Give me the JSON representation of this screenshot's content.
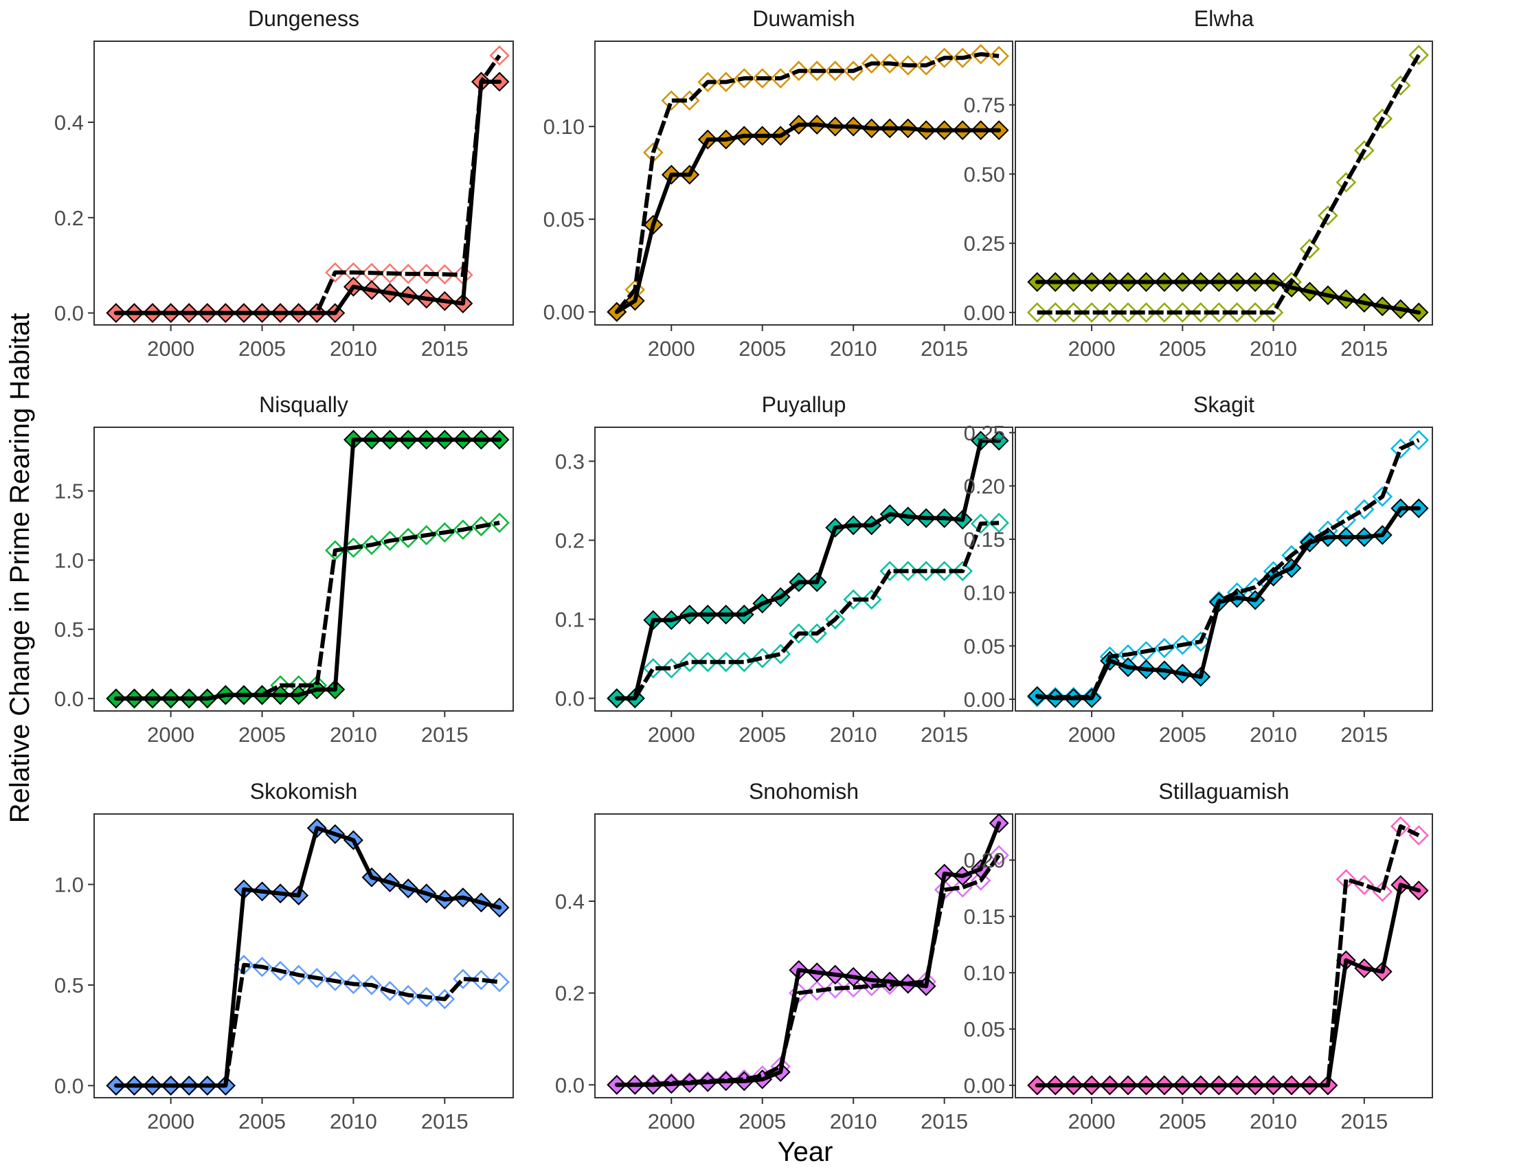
{
  "figure": {
    "xlabel": "Year",
    "ylabel": "Relative Change in Prime Rearing Habitat",
    "colors": {
      "Dungeness": "#F8766D",
      "Duwamish": "#D39200",
      "Elwha": "#93AA00",
      "Nisqually": "#00BA38",
      "Puyallup": "#00C19F",
      "Skagit": "#00B9E3",
      "Skokomish": "#619CFF",
      "Snohomish": "#DB72FB",
      "Stillaguamish": "#FF61C3"
    }
  },
  "chart_data": [
    {
      "type": "line",
      "title": "Dungeness",
      "x": [
        1997,
        1998,
        1999,
        2000,
        2001,
        2002,
        2003,
        2004,
        2005,
        2006,
        2007,
        2008,
        2009,
        2010,
        2011,
        2012,
        2013,
        2014,
        2015,
        2016,
        2017,
        2018
      ],
      "ylim": [
        -0.025,
        0.57
      ],
      "yticks": [
        0.0,
        0.2,
        0.4
      ],
      "ytick_labels": [
        "0.0",
        "0.2",
        "0.4"
      ],
      "xticks": [
        2000,
        2005,
        2010,
        2015
      ],
      "series": [
        {
          "name": "filled",
          "values": [
            0,
            0,
            0,
            0,
            0,
            0,
            0,
            0,
            0,
            0,
            0,
            0,
            0,
            0.055,
            0.048,
            0.042,
            0.036,
            0.03,
            0.025,
            0.02,
            0.485,
            0.485
          ]
        },
        {
          "name": "open",
          "values": [
            0,
            0,
            0,
            0,
            0,
            0,
            0,
            0,
            0,
            0,
            0,
            0,
            0.085,
            0.085,
            0.084,
            0.083,
            0.082,
            0.082,
            0.081,
            0.08,
            0.485,
            0.54
          ]
        }
      ]
    },
    {
      "type": "line",
      "title": "Duwamish",
      "x": [
        1997,
        1998,
        1999,
        2000,
        2001,
        2002,
        2003,
        2004,
        2005,
        2006,
        2007,
        2008,
        2009,
        2010,
        2011,
        2012,
        2013,
        2014,
        2015,
        2016,
        2017,
        2018
      ],
      "ylim": [
        -0.007,
        0.146
      ],
      "yticks": [
        0.0,
        0.05,
        0.1
      ],
      "ytick_labels": [
        "0.00",
        "0.05",
        "0.10"
      ],
      "xticks": [
        2000,
        2005,
        2010,
        2015
      ],
      "series": [
        {
          "name": "filled",
          "values": [
            0,
            0.006,
            0.047,
            0.074,
            0.074,
            0.093,
            0.093,
            0.095,
            0.095,
            0.095,
            0.101,
            0.101,
            0.1,
            0.1,
            0.099,
            0.099,
            0.099,
            0.098,
            0.098,
            0.098,
            0.098,
            0.098
          ]
        },
        {
          "name": "open",
          "values": [
            0,
            0.012,
            0.086,
            0.114,
            0.114,
            0.124,
            0.124,
            0.126,
            0.126,
            0.126,
            0.13,
            0.13,
            0.13,
            0.13,
            0.134,
            0.134,
            0.133,
            0.133,
            0.137,
            0.137,
            0.139,
            0.138
          ]
        }
      ]
    },
    {
      "type": "line",
      "title": "Elwha",
      "x": [
        1997,
        1998,
        1999,
        2000,
        2001,
        2002,
        2003,
        2004,
        2005,
        2006,
        2007,
        2008,
        2009,
        2010,
        2011,
        2012,
        2013,
        2014,
        2015,
        2016,
        2017,
        2018
      ],
      "ylim": [
        -0.045,
        0.98
      ],
      "yticks": [
        0.0,
        0.25,
        0.5,
        0.75
      ],
      "ytick_labels": [
        "0.00",
        "0.25",
        "0.50",
        "0.75"
      ],
      "xticks": [
        2000,
        2005,
        2010,
        2015
      ],
      "series": [
        {
          "name": "filled",
          "values": [
            0.11,
            0.11,
            0.11,
            0.11,
            0.11,
            0.11,
            0.11,
            0.11,
            0.11,
            0.11,
            0.11,
            0.11,
            0.11,
            0.11,
            0.09,
            0.075,
            0.062,
            0.048,
            0.035,
            0.022,
            0.012,
            0
          ]
        },
        {
          "name": "open",
          "values": [
            0,
            0,
            0,
            0,
            0,
            0,
            0,
            0,
            0,
            0,
            0,
            0,
            0,
            0,
            0.11,
            0.23,
            0.35,
            0.47,
            0.585,
            0.7,
            0.82,
            0.93
          ]
        }
      ]
    },
    {
      "type": "line",
      "title": "Nisqually",
      "x": [
        1997,
        1998,
        1999,
        2000,
        2001,
        2002,
        2003,
        2004,
        2005,
        2006,
        2007,
        2008,
        2009,
        2010,
        2011,
        2012,
        2013,
        2014,
        2015,
        2016,
        2017,
        2018
      ],
      "ylim": [
        -0.09,
        1.96
      ],
      "yticks": [
        0.0,
        0.5,
        1.0,
        1.5
      ],
      "ytick_labels": [
        "0.0",
        "0.5",
        "1.0",
        "1.5"
      ],
      "xticks": [
        2000,
        2005,
        2010,
        2015
      ],
      "series": [
        {
          "name": "filled",
          "values": [
            0,
            0,
            0,
            0,
            0,
            0,
            0.025,
            0.025,
            0.025,
            0.025,
            0.025,
            0.065,
            0.065,
            1.87,
            1.87,
            1.87,
            1.87,
            1.87,
            1.87,
            1.87,
            1.87,
            1.87
          ]
        },
        {
          "name": "open",
          "values": [
            0,
            0,
            0,
            0,
            0,
            0,
            0.025,
            0.025,
            0.025,
            0.095,
            0.095,
            0.095,
            1.07,
            1.09,
            1.11,
            1.14,
            1.16,
            1.18,
            1.2,
            1.22,
            1.245,
            1.27
          ]
        }
      ]
    },
    {
      "type": "line",
      "title": "Puyallup",
      "x": [
        1997,
        1998,
        1999,
        2000,
        2001,
        2002,
        2003,
        2004,
        2005,
        2006,
        2007,
        2008,
        2009,
        2010,
        2011,
        2012,
        2013,
        2014,
        2015,
        2016,
        2017,
        2018
      ],
      "ylim": [
        -0.016,
        0.343
      ],
      "yticks": [
        0.0,
        0.1,
        0.2,
        0.3
      ],
      "ytick_labels": [
        "0.0",
        "0.1",
        "0.2",
        "0.3"
      ],
      "xticks": [
        2000,
        2005,
        2010,
        2015
      ],
      "series": [
        {
          "name": "filled",
          "values": [
            0,
            0,
            0.099,
            0.099,
            0.106,
            0.106,
            0.106,
            0.106,
            0.12,
            0.128,
            0.147,
            0.147,
            0.216,
            0.219,
            0.219,
            0.233,
            0.23,
            0.228,
            0.228,
            0.226,
            0.326,
            0.326
          ]
        },
        {
          "name": "open",
          "values": [
            0,
            0,
            0.038,
            0.038,
            0.046,
            0.046,
            0.046,
            0.046,
            0.051,
            0.056,
            0.082,
            0.082,
            0.1,
            0.125,
            0.125,
            0.161,
            0.161,
            0.161,
            0.161,
            0.161,
            0.221,
            0.222
          ]
        }
      ]
    },
    {
      "type": "line",
      "title": "Skagit",
      "x": [
        1997,
        1998,
        1999,
        2000,
        2001,
        2002,
        2003,
        2004,
        2005,
        2006,
        2007,
        2008,
        2009,
        2010,
        2011,
        2012,
        2013,
        2014,
        2015,
        2016,
        2017,
        2018
      ],
      "ylim": [
        -0.011,
        0.255
      ],
      "yticks": [
        0.0,
        0.05,
        0.1,
        0.15,
        0.2,
        0.25
      ],
      "ytick_labels": [
        "0.00",
        "0.05",
        "0.10",
        "0.15",
        "0.20",
        "0.25"
      ],
      "xticks": [
        2000,
        2005,
        2010,
        2015
      ],
      "series": [
        {
          "name": "filled",
          "values": [
            0.003,
            0.001,
            0.001,
            0.001,
            0.036,
            0.03,
            0.028,
            0.027,
            0.024,
            0.021,
            0.091,
            0.095,
            0.093,
            0.115,
            0.123,
            0.147,
            0.152,
            0.152,
            0.152,
            0.154,
            0.179,
            0.179
          ]
        },
        {
          "name": "open",
          "values": [
            0.002,
            0.002,
            0.002,
            0.002,
            0.04,
            0.042,
            0.045,
            0.048,
            0.051,
            0.054,
            0.092,
            0.1,
            0.105,
            0.12,
            0.135,
            0.148,
            0.158,
            0.168,
            0.178,
            0.19,
            0.235,
            0.243
          ]
        }
      ]
    },
    {
      "type": "line",
      "title": "Skokomish",
      "x": [
        1997,
        1998,
        1999,
        2000,
        2001,
        2002,
        2003,
        2004,
        2005,
        2006,
        2007,
        2008,
        2009,
        2010,
        2011,
        2012,
        2013,
        2014,
        2015,
        2016,
        2017,
        2018
      ],
      "ylim": [
        -0.06,
        1.35
      ],
      "yticks": [
        0.0,
        0.5,
        1.0
      ],
      "ytick_labels": [
        "0.0",
        "0.5",
        "1.0"
      ],
      "xticks": [
        2000,
        2005,
        2010,
        2015
      ],
      "series": [
        {
          "name": "filled",
          "values": [
            0,
            0,
            0,
            0,
            0,
            0,
            0,
            0.975,
            0.965,
            0.955,
            0.945,
            1.28,
            1.25,
            1.22,
            1.035,
            1.01,
            0.98,
            0.955,
            0.925,
            0.935,
            0.91,
            0.885
          ]
        },
        {
          "name": "open",
          "values": [
            0,
            0,
            0,
            0,
            0,
            0,
            0,
            0.6,
            0.59,
            0.57,
            0.55,
            0.535,
            0.52,
            0.505,
            0.5,
            0.47,
            0.45,
            0.44,
            0.43,
            0.53,
            0.525,
            0.515
          ]
        }
      ]
    },
    {
      "type": "line",
      "title": "Snohomish",
      "x": [
        1997,
        1998,
        1999,
        2000,
        2001,
        2002,
        2003,
        2004,
        2005,
        2006,
        2007,
        2008,
        2009,
        2010,
        2011,
        2012,
        2013,
        2014,
        2015,
        2016,
        2017,
        2018
      ],
      "ylim": [
        -0.028,
        0.59
      ],
      "yticks": [
        0.0,
        0.2,
        0.4
      ],
      "ytick_labels": [
        "0.0",
        "0.2",
        "0.4"
      ],
      "xticks": [
        2000,
        2005,
        2010,
        2015
      ],
      "series": [
        {
          "name": "filled",
          "values": [
            0,
            0,
            0,
            0.002,
            0.004,
            0.006,
            0.008,
            0.008,
            0.012,
            0.028,
            0.25,
            0.245,
            0.24,
            0.235,
            0.228,
            0.225,
            0.22,
            0.215,
            0.46,
            0.455,
            0.47,
            0.57
          ]
        },
        {
          "name": "open",
          "values": [
            0,
            0,
            0.002,
            0.004,
            0.006,
            0.008,
            0.01,
            0.012,
            0.02,
            0.04,
            0.2,
            0.205,
            0.21,
            0.212,
            0.215,
            0.218,
            0.221,
            0.225,
            0.425,
            0.43,
            0.445,
            0.5
          ]
        }
      ]
    },
    {
      "type": "line",
      "title": "Stillaguamish",
      "x": [
        1997,
        1998,
        1999,
        2000,
        2001,
        2002,
        2003,
        2004,
        2005,
        2006,
        2007,
        2008,
        2009,
        2010,
        2011,
        2012,
        2013,
        2014,
        2015,
        2016,
        2017,
        2018
      ],
      "ylim": [
        -0.011,
        0.241
      ],
      "yticks": [
        0.0,
        0.05,
        0.1,
        0.15,
        0.2
      ],
      "ytick_labels": [
        "0.00",
        "0.05",
        "0.10",
        "0.15",
        "0.20"
      ],
      "xticks": [
        2000,
        2005,
        2010,
        2015
      ],
      "series": [
        {
          "name": "filled",
          "values": [
            0,
            0,
            0,
            0,
            0,
            0,
            0,
            0,
            0,
            0,
            0,
            0,
            0,
            0,
            0,
            0,
            0,
            0.111,
            0.104,
            0.101,
            0.178,
            0.173
          ]
        },
        {
          "name": "open",
          "values": [
            0,
            0,
            0,
            0,
            0,
            0,
            0,
            0,
            0,
            0,
            0,
            0,
            0,
            0,
            0,
            0,
            0,
            0.183,
            0.178,
            0.172,
            0.23,
            0.222
          ]
        }
      ]
    }
  ]
}
